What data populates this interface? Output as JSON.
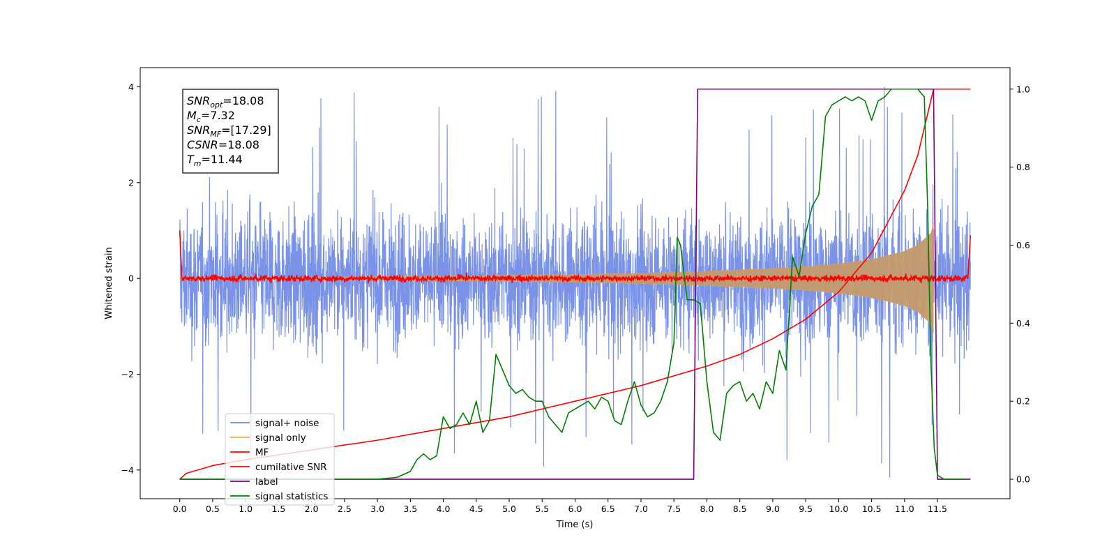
{
  "chart_data": {
    "type": "line",
    "xlabel": "Time (s)",
    "ylabel": "Whitened strain",
    "ylabel_right": "",
    "xlim": [
      -0.6,
      12.6
    ],
    "ylim": [
      -4.6,
      4.4
    ],
    "ylim_right": [
      -0.05,
      1.055
    ],
    "x_ticks": [
      "0.0",
      "0.5",
      "1.0",
      "1.5",
      "2.0",
      "2.5",
      "3.0",
      "3.5",
      "4.0",
      "4.5",
      "5.0",
      "5.5",
      "6.0",
      "6.5",
      "7.0",
      "7.5",
      "8.0",
      "8.5",
      "9.0",
      "9.5",
      "10.0",
      "10.5",
      "11.0",
      "11.5"
    ],
    "y_ticks": [
      "-4",
      "-2",
      "0",
      "2",
      "4"
    ],
    "y_ticks_right": [
      "0.0",
      "0.2",
      "0.4",
      "0.6",
      "0.8",
      "1.0"
    ],
    "grid": false,
    "legend_position": "lower-left",
    "annotation": [
      {
        "sym": "SNR",
        "sub": "opt",
        "val": "=18.08"
      },
      {
        "sym": "M",
        "sub": "c",
        "val": "=7.32"
      },
      {
        "sym": "SNR",
        "sub": "MF",
        "val": "=[17.29]"
      },
      {
        "sym": "CSNR",
        "sub": "",
        "val": "=18.08"
      },
      {
        "sym": "T",
        "sub": "m",
        "val": "=11.44"
      }
    ],
    "series": [
      {
        "name": "signal+ noise",
        "axis": "left",
        "color": "#6b87e6",
        "description_values": {
          "x_range": [
            0.0,
            12.0
          ],
          "typical_band": [
            -1.8,
            1.8
          ],
          "max_peak": 4.0,
          "min_peak": -4.1
        }
      },
      {
        "name": "signal only",
        "axis": "left",
        "color": "#f5b041",
        "envelope": {
          "x": [
            0.0,
            2.0,
            4.0,
            6.0,
            7.0,
            8.0,
            9.0,
            9.5,
            10.0,
            10.5,
            11.0,
            11.2,
            11.4,
            11.44
          ],
          "amp": [
            0.02,
            0.03,
            0.05,
            0.08,
            0.11,
            0.15,
            0.21,
            0.25,
            0.31,
            0.4,
            0.57,
            0.7,
            0.95,
            1.15
          ]
        }
      },
      {
        "name": "MF",
        "axis": "left",
        "color": "#ff0000",
        "description_values": {
          "baseline": 0.0,
          "noise_amplitude": 0.1,
          "start_value": 1.0,
          "end_value": 0.9
        }
      },
      {
        "name": "cumilative SNR",
        "axis": "right",
        "color": "#ff0000",
        "x": [
          0.0,
          0.1,
          0.5,
          1.0,
          2.0,
          3.0,
          4.0,
          5.0,
          6.0,
          7.0,
          8.0,
          8.5,
          9.0,
          9.5,
          10.0,
          10.5,
          11.0,
          11.2,
          11.44,
          11.5,
          12.0
        ],
        "y": [
          0.0,
          0.015,
          0.035,
          0.05,
          0.075,
          0.1,
          0.13,
          0.16,
          0.2,
          0.24,
          0.29,
          0.32,
          0.36,
          0.41,
          0.48,
          0.58,
          0.74,
          0.83,
          1.0,
          1.0,
          1.0
        ]
      },
      {
        "name": "label",
        "axis": "right",
        "color": "#800080",
        "x": [
          0.0,
          7.8,
          7.86,
          11.44,
          11.5,
          12.0
        ],
        "y": [
          0.0,
          0.0,
          1.0,
          1.0,
          0.0,
          0.0
        ]
      },
      {
        "name": "signal statistics",
        "axis": "right",
        "color": "#008000",
        "x": [
          0.0,
          0.5,
          1.0,
          1.5,
          2.0,
          2.5,
          3.0,
          3.3,
          3.5,
          3.6,
          3.7,
          3.8,
          3.9,
          4.0,
          4.1,
          4.2,
          4.3,
          4.4,
          4.5,
          4.6,
          4.7,
          4.8,
          4.9,
          5.0,
          5.1,
          5.2,
          5.3,
          5.4,
          5.5,
          5.6,
          5.7,
          5.8,
          5.9,
          6.0,
          6.1,
          6.2,
          6.3,
          6.4,
          6.5,
          6.6,
          6.7,
          6.8,
          6.9,
          7.0,
          7.1,
          7.2,
          7.3,
          7.4,
          7.5,
          7.55,
          7.6,
          7.7,
          7.8,
          7.9,
          8.0,
          8.1,
          8.2,
          8.3,
          8.4,
          8.5,
          8.6,
          8.7,
          8.8,
          8.9,
          9.0,
          9.1,
          9.2,
          9.3,
          9.4,
          9.5,
          9.6,
          9.7,
          9.8,
          9.9,
          10.0,
          10.1,
          10.2,
          10.3,
          10.4,
          10.5,
          10.6,
          10.7,
          10.8,
          10.9,
          11.0,
          11.1,
          11.2,
          11.3,
          11.35,
          11.4,
          11.45,
          11.5,
          11.6,
          11.7,
          11.8,
          11.9,
          11.94
        ],
        "y": [
          0.0,
          0.0,
          0.0,
          0.0,
          0.0,
          0.0,
          0.0,
          0.005,
          0.02,
          0.05,
          0.065,
          0.05,
          0.06,
          0.16,
          0.13,
          0.14,
          0.17,
          0.14,
          0.2,
          0.12,
          0.15,
          0.32,
          0.28,
          0.24,
          0.22,
          0.23,
          0.21,
          0.2,
          0.2,
          0.16,
          0.14,
          0.12,
          0.17,
          0.18,
          0.19,
          0.2,
          0.18,
          0.21,
          0.2,
          0.15,
          0.14,
          0.2,
          0.25,
          0.19,
          0.16,
          0.17,
          0.2,
          0.25,
          0.35,
          0.62,
          0.6,
          0.46,
          0.46,
          0.45,
          0.25,
          0.12,
          0.1,
          0.22,
          0.24,
          0.25,
          0.2,
          0.22,
          0.18,
          0.25,
          0.22,
          0.33,
          0.28,
          0.57,
          0.52,
          0.63,
          0.7,
          0.73,
          0.93,
          0.96,
          0.97,
          0.98,
          0.97,
          0.98,
          0.97,
          0.92,
          0.97,
          0.98,
          1.0,
          1.0,
          1.0,
          1.0,
          1.0,
          0.98,
          0.7,
          0.3,
          0.08,
          0.01,
          0.0,
          0.0,
          0.0,
          0.0,
          0.0
        ]
      }
    ]
  },
  "legend": [
    {
      "label": "signal+ noise",
      "color": "#6b87e6"
    },
    {
      "label": "signal only",
      "color": "#f5b041"
    },
    {
      "label": "MF",
      "color": "#ff0000"
    },
    {
      "label": "cumilative SNR",
      "color": "#ff0000"
    },
    {
      "label": "label",
      "color": "#800080"
    },
    {
      "label": "signal statistics",
      "color": "#008000"
    }
  ]
}
